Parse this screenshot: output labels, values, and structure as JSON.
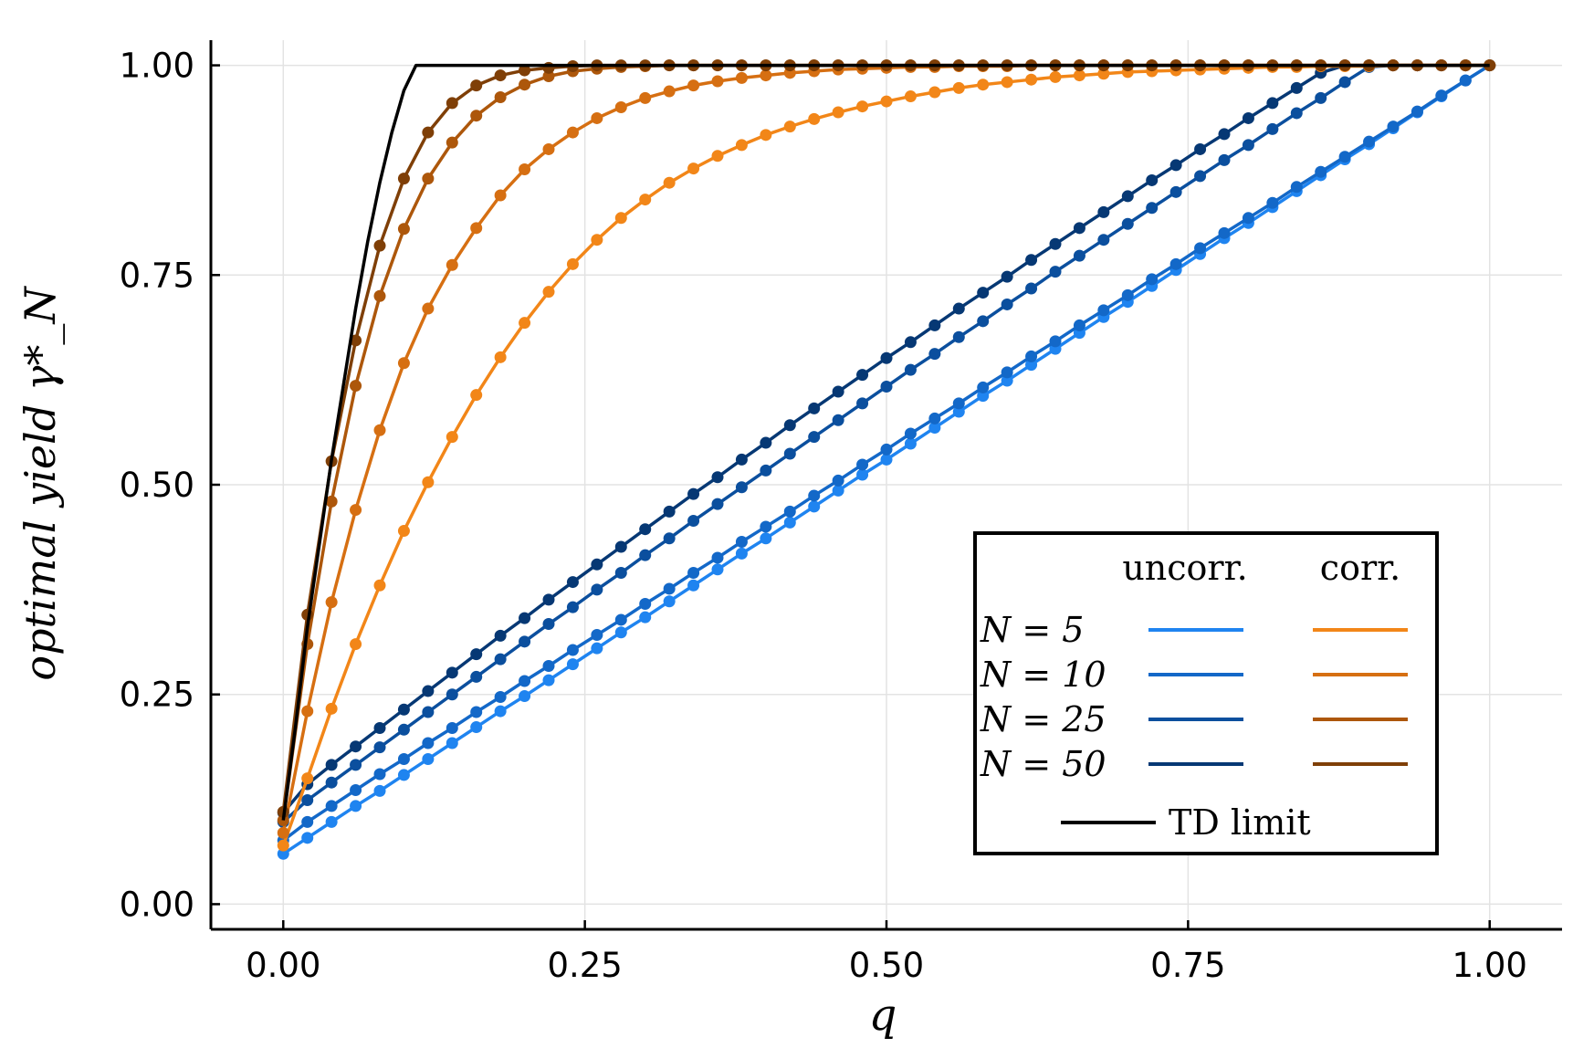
{
  "chart_data": {
    "type": "line",
    "title": "",
    "xlabel": "q",
    "ylabel": "optimal yield γ*_N",
    "xlim": [
      -0.06,
      1.06
    ],
    "ylim": [
      -0.03,
      1.03
    ],
    "grid": true,
    "x_ticks": [
      "0.00",
      "0.25",
      "0.50",
      "0.75",
      "1.00"
    ],
    "x_tick_values": [
      0,
      0.25,
      0.5,
      0.75,
      1.0
    ],
    "y_ticks": [
      "0.00",
      "0.25",
      "0.50",
      "0.75",
      "1.00"
    ],
    "y_tick_values": [
      0,
      0.25,
      0.5,
      0.75,
      1.0
    ],
    "legend": {
      "position": "bottom-right",
      "col_uncorr": "uncorr.",
      "col_corr": "corr.",
      "rows": [
        {
          "label": "N = 5",
          "N": 5
        },
        {
          "label": "N = 10",
          "N": 10
        },
        {
          "label": "N = 25",
          "N": 25
        },
        {
          "label": "N = 50",
          "N": 50
        }
      ],
      "td_label": "TD limit"
    },
    "colors": {
      "uncorr": [
        "#1f84f0",
        "#1368c8",
        "#0b4f9e",
        "#063874"
      ],
      "corr": [
        "#f28618",
        "#d66f12",
        "#ad570b",
        "#7f3f07"
      ],
      "td": "#000000"
    },
    "x": [
      0.0,
      0.02,
      0.04,
      0.06,
      0.08,
      0.1,
      0.12,
      0.14,
      0.16,
      0.18,
      0.2,
      0.22,
      0.24,
      0.26,
      0.28,
      0.3,
      0.32,
      0.34,
      0.36,
      0.38,
      0.4,
      0.42,
      0.44,
      0.46,
      0.48,
      0.5,
      0.52,
      0.54,
      0.56,
      0.58,
      0.6,
      0.62,
      0.64,
      0.66,
      0.68,
      0.7,
      0.72,
      0.74,
      0.76,
      0.78,
      0.8,
      0.82,
      0.84,
      0.86,
      0.88,
      0.9,
      0.92,
      0.94,
      0.96,
      0.98,
      1.0
    ],
    "series": [
      {
        "name": "uncorr. N = 5",
        "group": "uncorr",
        "values": [
          0.06,
          0.079,
          0.098,
          0.117,
          0.135,
          0.154,
          0.173,
          0.192,
          0.211,
          0.23,
          0.248,
          0.267,
          0.286,
          0.305,
          0.324,
          0.342,
          0.361,
          0.38,
          0.399,
          0.418,
          0.436,
          0.455,
          0.474,
          0.493,
          0.512,
          0.53,
          0.549,
          0.568,
          0.587,
          0.606,
          0.624,
          0.643,
          0.662,
          0.681,
          0.7,
          0.718,
          0.737,
          0.756,
          0.775,
          0.794,
          0.812,
          0.831,
          0.85,
          0.869,
          0.888,
          0.906,
          0.925,
          0.944,
          0.963,
          0.982,
          1.0
        ]
      },
      {
        "name": "uncorr. N = 10",
        "group": "uncorr",
        "values": [
          0.076,
          0.098,
          0.117,
          0.136,
          0.155,
          0.173,
          0.192,
          0.21,
          0.229,
          0.247,
          0.266,
          0.284,
          0.303,
          0.321,
          0.339,
          0.358,
          0.376,
          0.395,
          0.413,
          0.432,
          0.45,
          0.468,
          0.487,
          0.505,
          0.524,
          0.542,
          0.561,
          0.579,
          0.597,
          0.616,
          0.634,
          0.653,
          0.671,
          0.69,
          0.708,
          0.726,
          0.745,
          0.763,
          0.782,
          0.8,
          0.818,
          0.836,
          0.855,
          0.873,
          0.891,
          0.909,
          0.927,
          0.945,
          0.964,
          0.982,
          1.0
        ]
      },
      {
        "name": "uncorr. N = 25",
        "group": "uncorr",
        "values": [
          0.098,
          0.124,
          0.145,
          0.166,
          0.187,
          0.208,
          0.229,
          0.25,
          0.271,
          0.292,
          0.313,
          0.334,
          0.354,
          0.375,
          0.395,
          0.416,
          0.436,
          0.457,
          0.477,
          0.497,
          0.517,
          0.537,
          0.557,
          0.577,
          0.597,
          0.617,
          0.637,
          0.656,
          0.676,
          0.695,
          0.715,
          0.734,
          0.754,
          0.773,
          0.792,
          0.811,
          0.83,
          0.849,
          0.868,
          0.887,
          0.905,
          0.924,
          0.943,
          0.961,
          0.98,
          0.998,
          1.0,
          1.0,
          1.0,
          1.0,
          1.0
        ]
      },
      {
        "name": "uncorr. N = 50",
        "group": "uncorr",
        "values": [
          0.109,
          0.143,
          0.166,
          0.188,
          0.21,
          0.232,
          0.254,
          0.276,
          0.298,
          0.32,
          0.341,
          0.363,
          0.384,
          0.405,
          0.426,
          0.447,
          0.468,
          0.489,
          0.509,
          0.53,
          0.55,
          0.571,
          0.591,
          0.611,
          0.631,
          0.651,
          0.67,
          0.69,
          0.71,
          0.729,
          0.748,
          0.768,
          0.787,
          0.806,
          0.825,
          0.844,
          0.863,
          0.881,
          0.9,
          0.918,
          0.937,
          0.955,
          0.973,
          0.991,
          1.0,
          1.0,
          1.0,
          1.0,
          1.0,
          1.0,
          1.0
        ]
      },
      {
        "name": "corr. N = 5",
        "group": "corr",
        "values": [
          0.07,
          0.15,
          0.233,
          0.31,
          0.38,
          0.445,
          0.503,
          0.557,
          0.607,
          0.652,
          0.693,
          0.73,
          0.763,
          0.792,
          0.818,
          0.84,
          0.86,
          0.877,
          0.892,
          0.905,
          0.917,
          0.927,
          0.936,
          0.944,
          0.951,
          0.957,
          0.963,
          0.968,
          0.973,
          0.977,
          0.98,
          0.983,
          0.986,
          0.988,
          0.99,
          0.992,
          0.993,
          0.994,
          0.995,
          0.996,
          0.997,
          0.998,
          0.998,
          0.999,
          0.999,
          0.999,
          1.0,
          1.0,
          1.0,
          1.0,
          1.0
        ]
      },
      {
        "name": "corr. N = 10",
        "group": "corr",
        "values": [
          0.085,
          0.23,
          0.36,
          0.47,
          0.565,
          0.645,
          0.71,
          0.762,
          0.806,
          0.845,
          0.876,
          0.9,
          0.92,
          0.937,
          0.95,
          0.961,
          0.969,
          0.976,
          0.981,
          0.985,
          0.988,
          0.991,
          0.993,
          0.995,
          0.996,
          0.997,
          0.998,
          0.998,
          0.999,
          0.999,
          0.999,
          1.0,
          1.0,
          1.0,
          1.0,
          1.0,
          1.0,
          1.0,
          1.0,
          1.0,
          1.0,
          1.0,
          1.0,
          1.0,
          1.0,
          1.0,
          1.0,
          1.0,
          1.0,
          1.0,
          1.0
        ]
      },
      {
        "name": "corr. N = 25",
        "group": "corr",
        "values": [
          0.1,
          0.31,
          0.48,
          0.618,
          0.725,
          0.805,
          0.865,
          0.908,
          0.94,
          0.962,
          0.977,
          0.987,
          0.993,
          0.996,
          0.998,
          0.999,
          1.0,
          1.0,
          1.0,
          1.0,
          1.0,
          1.0,
          1.0,
          1.0,
          1.0,
          1.0,
          1.0,
          1.0,
          1.0,
          1.0,
          1.0,
          1.0,
          1.0,
          1.0,
          1.0,
          1.0,
          1.0,
          1.0,
          1.0,
          1.0,
          1.0,
          1.0,
          1.0,
          1.0,
          1.0,
          1.0,
          1.0,
          1.0,
          1.0,
          1.0,
          1.0
        ]
      },
      {
        "name": "corr. N = 50",
        "group": "corr",
        "values": [
          0.11,
          0.345,
          0.528,
          0.672,
          0.785,
          0.865,
          0.92,
          0.955,
          0.976,
          0.988,
          0.994,
          0.997,
          0.999,
          1.0,
          1.0,
          1.0,
          1.0,
          1.0,
          1.0,
          1.0,
          1.0,
          1.0,
          1.0,
          1.0,
          1.0,
          1.0,
          1.0,
          1.0,
          1.0,
          1.0,
          1.0,
          1.0,
          1.0,
          1.0,
          1.0,
          1.0,
          1.0,
          1.0,
          1.0,
          1.0,
          1.0,
          1.0,
          1.0,
          1.0,
          1.0,
          1.0,
          1.0,
          1.0,
          1.0,
          1.0,
          1.0
        ]
      }
    ],
    "td_limit": {
      "name": "TD limit",
      "x": [
        0.0,
        0.01,
        0.02,
        0.03,
        0.04,
        0.05,
        0.06,
        0.07,
        0.08,
        0.09,
        0.1,
        0.11,
        1.0
      ],
      "values": [
        0.1,
        0.21,
        0.33,
        0.43,
        0.53,
        0.62,
        0.71,
        0.79,
        0.86,
        0.92,
        0.97,
        1.0,
        1.0
      ]
    }
  }
}
